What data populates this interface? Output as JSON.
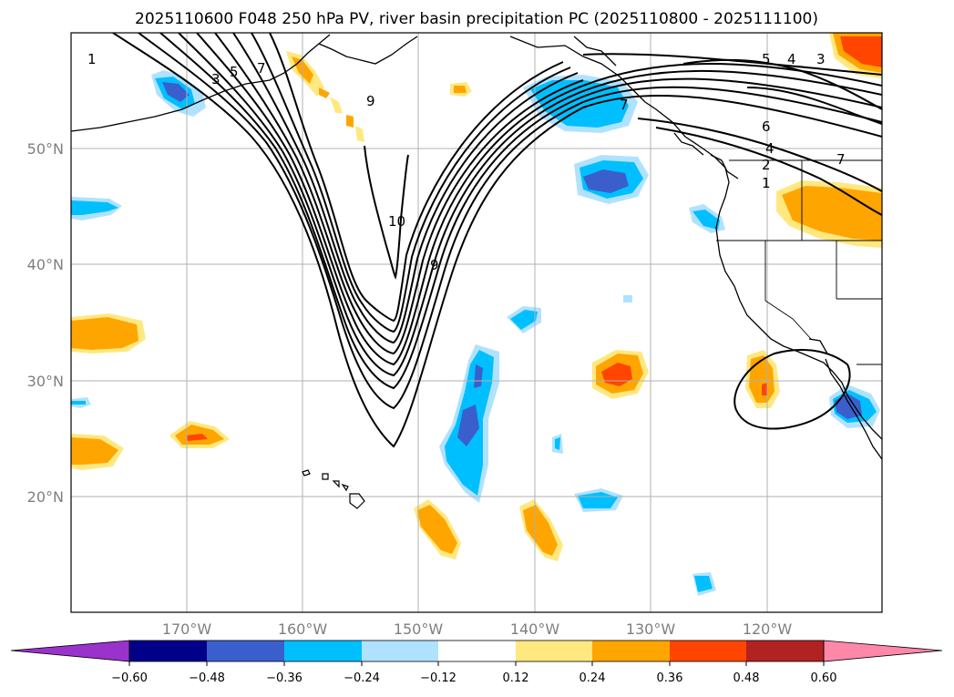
{
  "title": "2025110600 F048 250 hPa PV, river basin precipitation PC (2025110800 - 2025111100)",
  "lat_labels": [
    "50°N",
    "40°N",
    "30°N",
    "20°N"
  ],
  "lon_labels": [
    "170°W",
    "160°W",
    "150°W",
    "140°W",
    "130°W",
    "120°W"
  ],
  "colorbar": {
    "ticks": [
      "−0.60",
      "−0.48",
      "−0.36",
      "−0.24",
      "−0.12",
      "0.12",
      "0.24",
      "0.36",
      "0.48",
      "0.60"
    ],
    "colors": [
      "#9933cc",
      "#000088",
      "#3a5fcd",
      "#00bfff",
      "#b0e2ff",
      "#ffffff",
      "#ffe880",
      "#ffa500",
      "#ff4500",
      "#b22222",
      "#ff88aa"
    ]
  },
  "contour_labels": {
    "west_1": "1",
    "west_3": "3",
    "west_5": "5",
    "west_7": "7",
    "north_9": "9",
    "trough_10": "10",
    "trough_9": "9",
    "east_7": "7",
    "east_6": "6",
    "east_4": "4",
    "east_2": "2",
    "east_1": "1",
    "ne_5": "5",
    "ne_4": "4",
    "ne_3": "3"
  }
}
